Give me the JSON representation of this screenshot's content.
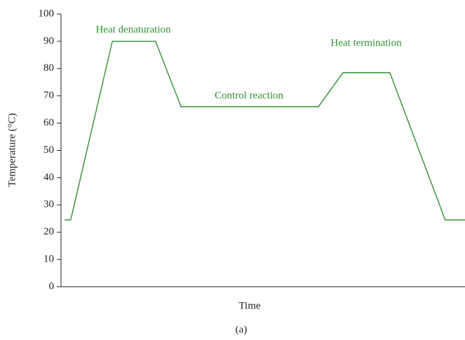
{
  "chart_data": {
    "type": "line",
    "y_label": "Temperature (°C)",
    "x_label": "Time",
    "caption": "(a)",
    "annotations": [
      "Heat denaturation",
      "Control reaction",
      "Heat termination"
    ],
    "x": [
      0.9,
      2.4,
      12.7,
      23.4,
      29.7,
      63.7,
      69.8,
      81.4,
      95.1,
      100
    ],
    "xlim": [
      0,
      100
    ],
    "series": [
      {
        "color": "#2f8f2f",
        "values": [
          24.5,
          24.5,
          90,
          90,
          66,
          66,
          78.5,
          78.5,
          24.5,
          24.5
        ]
      }
    ],
    "ylim": [
      0,
      100
    ],
    "yticks": [
      0,
      10,
      20,
      30,
      40,
      50,
      60,
      70,
      80,
      90,
      100
    ],
    "grid": false
  }
}
